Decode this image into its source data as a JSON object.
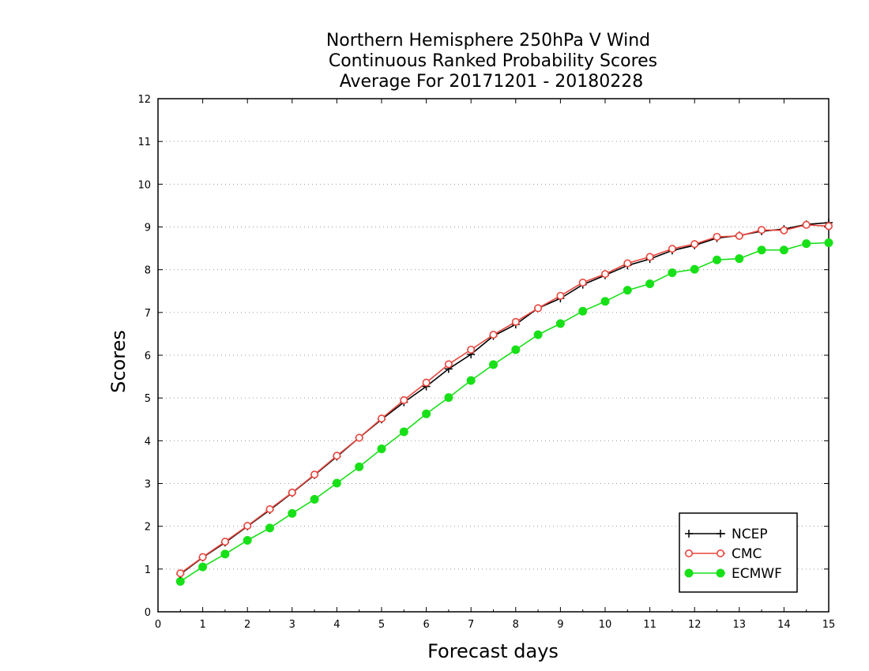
{
  "chart_data": {
    "type": "line",
    "title": [
      "Northern Hemisphere 250hPa V Wind",
      "Continuous Ranked Probability Scores",
      "Average For 20171201 - 20180228"
    ],
    "xlabel": "Forecast days",
    "ylabel": "Scores",
    "xlim": [
      0,
      15
    ],
    "ylim": [
      0,
      12
    ],
    "xticks": [
      0,
      1,
      2,
      3,
      4,
      5,
      6,
      7,
      8,
      9,
      10,
      11,
      12,
      13,
      14,
      15
    ],
    "yticks": [
      0,
      1,
      2,
      3,
      4,
      5,
      6,
      7,
      8,
      9,
      10,
      11,
      12
    ],
    "grid": "horizontal dotted",
    "legend_position": "bottom-right",
    "x": [
      0.5,
      1,
      1.5,
      2,
      2.5,
      3,
      3.5,
      4,
      4.5,
      5,
      5.5,
      6,
      6.5,
      7,
      7.5,
      8,
      8.5,
      9,
      9.5,
      10,
      10.5,
      11,
      11.5,
      12,
      12.5,
      13,
      13.5,
      14,
      14.5,
      15
    ],
    "series": [
      {
        "name": "NCEP",
        "color": "#000000",
        "marker": "plus",
        "values": [
          0.88,
          1.27,
          1.62,
          2.0,
          2.38,
          2.78,
          3.2,
          3.63,
          4.07,
          4.5,
          4.9,
          5.27,
          5.68,
          6.02,
          6.45,
          6.72,
          7.1,
          7.33,
          7.65,
          7.87,
          8.1,
          8.25,
          8.45,
          8.57,
          8.74,
          8.8,
          8.9,
          8.95,
          9.06,
          9.1
        ]
      },
      {
        "name": "CMC",
        "color": "#e8453c",
        "marker": "open-circle",
        "values": [
          0.9,
          1.28,
          1.64,
          2.01,
          2.4,
          2.79,
          3.21,
          3.65,
          4.07,
          4.52,
          4.95,
          5.36,
          5.79,
          6.13,
          6.48,
          6.78,
          7.1,
          7.39,
          7.7,
          7.9,
          8.15,
          8.3,
          8.49,
          8.6,
          8.77,
          8.79,
          8.93,
          8.92,
          9.05,
          9.02
        ]
      },
      {
        "name": "ECMWF",
        "color": "#18e018",
        "marker": "filled-circle",
        "values": [
          0.71,
          1.05,
          1.35,
          1.67,
          1.96,
          2.3,
          2.63,
          3.01,
          3.39,
          3.81,
          4.21,
          4.63,
          5.01,
          5.41,
          5.78,
          6.13,
          6.48,
          6.74,
          7.03,
          7.26,
          7.52,
          7.67,
          7.93,
          8.01,
          8.23,
          8.26,
          8.46,
          8.46,
          8.61,
          8.63
        ]
      }
    ]
  }
}
